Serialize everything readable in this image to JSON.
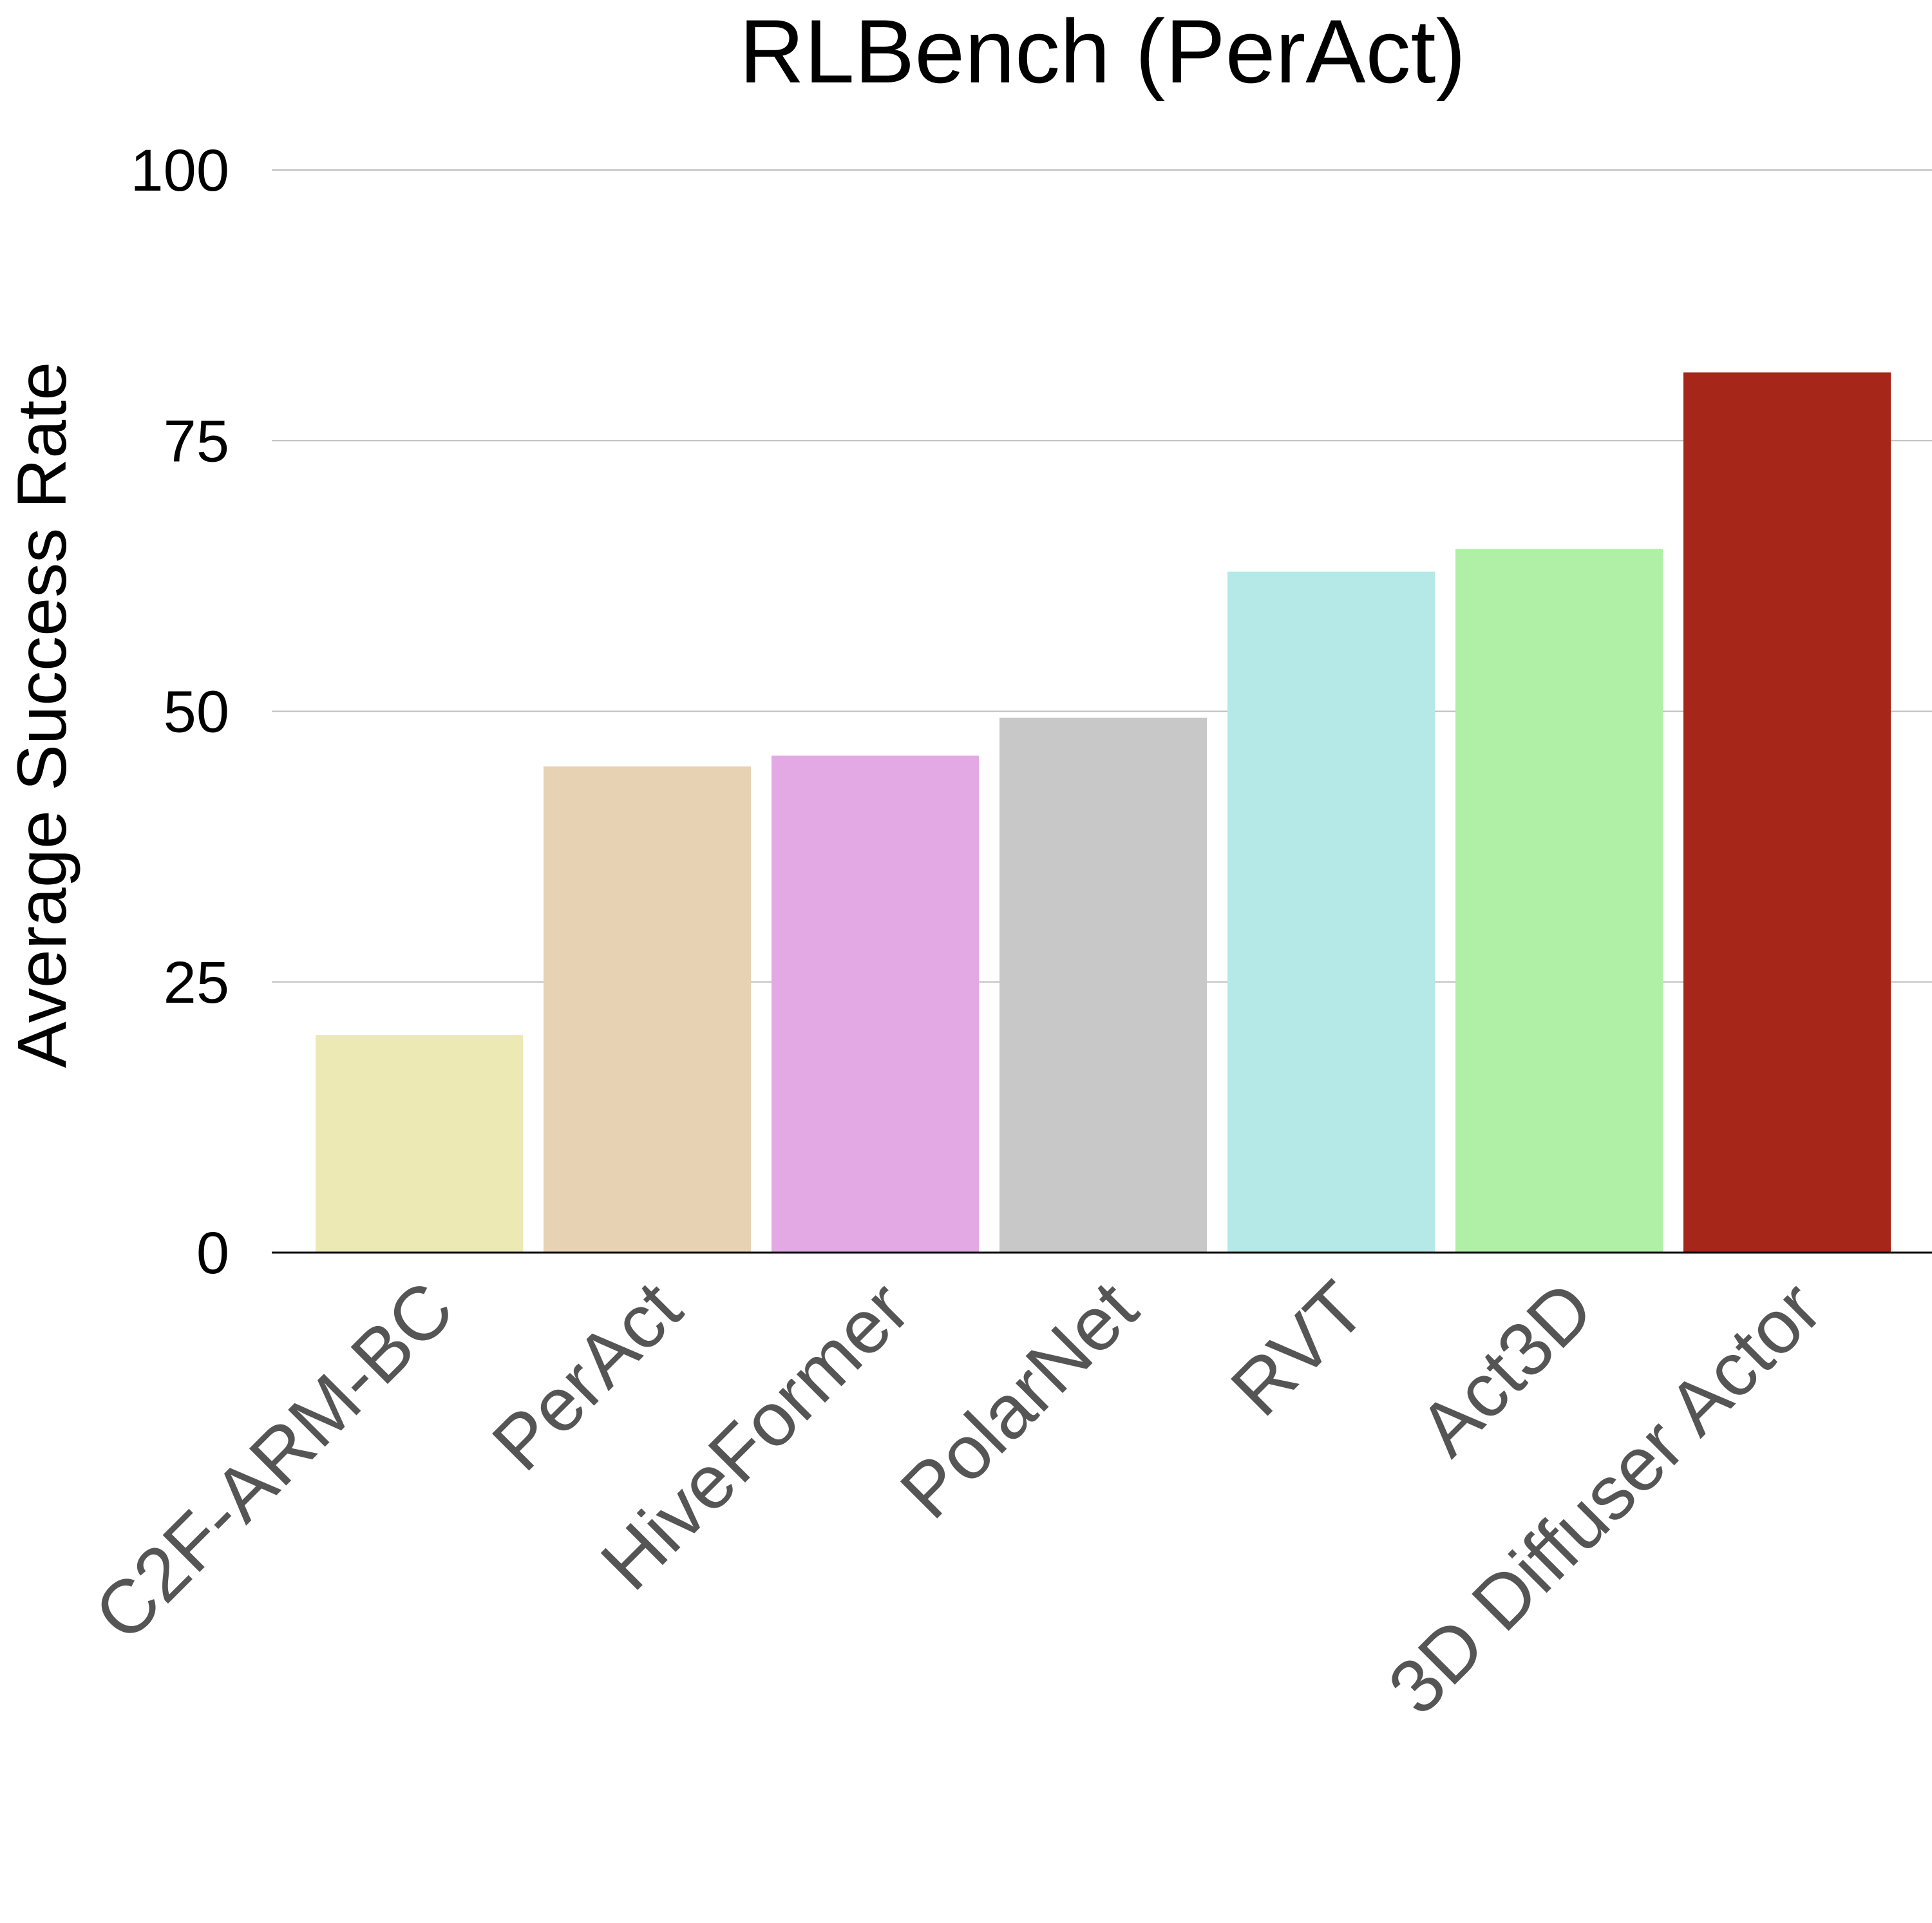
{
  "chart_data": {
    "type": "bar",
    "title": "RLBench (PerAct)",
    "xlabel": "",
    "ylabel": "Average Success Rate",
    "ylim": [
      0,
      100
    ],
    "yticks": [
      "0",
      "25",
      "50",
      "75",
      "100"
    ],
    "ytick_values": [
      0,
      25,
      50,
      75,
      100
    ],
    "grid": true,
    "legend": "none",
    "categories": [
      "C2F-ARM-BC",
      "PerAct",
      "HiveFormer",
      "PolarNet",
      "RVT",
      "Act3D",
      "3D Diffuser Actor"
    ],
    "values": [
      20.1,
      44.9,
      45.9,
      49.4,
      62.9,
      65.0,
      81.3
    ],
    "colors": [
      "#ECE9B5",
      "#E8D2B4",
      "#E2A9E5",
      "#C8C8C8",
      "#B5E9E7",
      "#AFF0A6",
      "#A62719"
    ]
  }
}
